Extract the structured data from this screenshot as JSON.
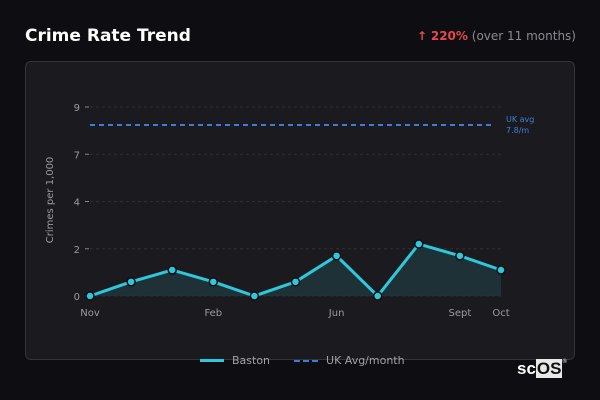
{
  "header": {
    "title": "Crime Rate Trend",
    "change_arrow": "↑",
    "change_pct": "220%",
    "change_note": "(over 11 months)"
  },
  "chart_data": {
    "type": "line",
    "title": "",
    "xlabel": "",
    "ylabel": "Crimes per 1,000",
    "x_tick_labels": [
      {
        "index": 0,
        "label": "Nov"
      },
      {
        "index": 3,
        "label": "Feb"
      },
      {
        "index": 6,
        "label": "Jun"
      },
      {
        "index": 9,
        "label": "Sept"
      },
      {
        "index": 10,
        "label": "Oct"
      }
    ],
    "y_ticks": [
      0,
      2,
      4,
      7,
      9
    ],
    "grid": true,
    "series": [
      {
        "name": "Baston",
        "color": "#2ec8dc",
        "values": [
          0,
          0.6,
          1.1,
          0.6,
          0,
          0.6,
          1.7,
          0,
          2.2,
          1.7,
          1.1
        ],
        "fill": true
      },
      {
        "name": "UK Avg/month",
        "color": "#3b7ddd",
        "dashed": true,
        "constant": 7.8
      }
    ],
    "annotation": {
      "line1": "UK avg",
      "line2": "7.8/m"
    },
    "legend_position": "bottom"
  },
  "logo": {
    "text_a": "sc",
    "text_b": "OS",
    "mark": "®"
  }
}
